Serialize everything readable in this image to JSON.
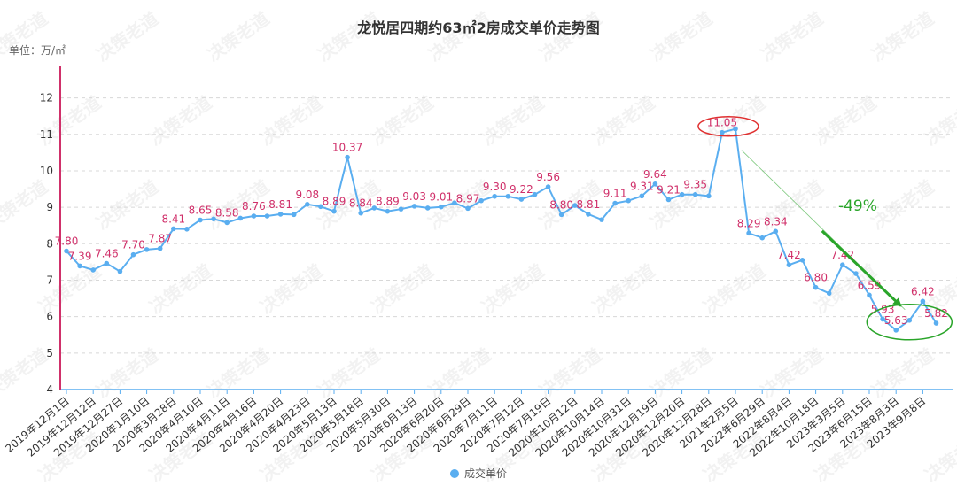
{
  "chart_data": {
    "type": "line",
    "title": "龙悦居四期约63㎡2房成交单价走势图",
    "unit_label": "单位：万/㎡",
    "ylim": [
      4,
      12.5
    ],
    "yticks": [
      4,
      5,
      6,
      7,
      8,
      9,
      10,
      11,
      12
    ],
    "grid": true,
    "legend_position": "bottom-center",
    "watermark": "决策老道",
    "series": [
      {
        "name": "成交单价",
        "color": "#5aaef0",
        "values": [
          7.8,
          7.39,
          7.28,
          7.46,
          7.24,
          7.7,
          7.84,
          7.87,
          8.41,
          8.4,
          8.65,
          8.68,
          8.58,
          8.7,
          8.76,
          8.76,
          8.81,
          8.8,
          9.08,
          9.02,
          8.89,
          10.37,
          8.84,
          8.98,
          8.89,
          8.95,
          9.03,
          8.98,
          9.01,
          9.12,
          8.97,
          9.18,
          9.3,
          9.3,
          9.22,
          9.35,
          9.56,
          8.8,
          9.05,
          8.81,
          8.66,
          9.11,
          9.18,
          9.31,
          9.64,
          9.21,
          9.35,
          9.35,
          9.31,
          11.05,
          11.15,
          8.29,
          8.16,
          8.34,
          7.42,
          7.55,
          6.8,
          6.64,
          7.42,
          7.18,
          6.59,
          5.93,
          5.63,
          5.9,
          6.42,
          5.82
        ]
      }
    ],
    "data_labels": [
      {
        "i": 0,
        "text": "7.80"
      },
      {
        "i": 1,
        "text": "7.39"
      },
      {
        "i": 3,
        "text": "7.46"
      },
      {
        "i": 5,
        "text": "7.70"
      },
      {
        "i": 7,
        "text": "7.87"
      },
      {
        "i": 8,
        "text": "8.41"
      },
      {
        "i": 10,
        "text": "8.65"
      },
      {
        "i": 12,
        "text": "8.58"
      },
      {
        "i": 14,
        "text": "8.76"
      },
      {
        "i": 16,
        "text": "8.81"
      },
      {
        "i": 18,
        "text": "9.08"
      },
      {
        "i": 20,
        "text": "8.89"
      },
      {
        "i": 21,
        "text": "10.37"
      },
      {
        "i": 22,
        "text": "8.84"
      },
      {
        "i": 24,
        "text": "8.89"
      },
      {
        "i": 26,
        "text": "9.03"
      },
      {
        "i": 28,
        "text": "9.01"
      },
      {
        "i": 30,
        "text": "8.97"
      },
      {
        "i": 32,
        "text": "9.30"
      },
      {
        "i": 34,
        "text": "9.22"
      },
      {
        "i": 36,
        "text": "9.56"
      },
      {
        "i": 37,
        "text": "8.80"
      },
      {
        "i": 39,
        "text": "8.81"
      },
      {
        "i": 41,
        "text": "9.11"
      },
      {
        "i": 43,
        "text": "9.31"
      },
      {
        "i": 44,
        "text": "9.64"
      },
      {
        "i": 45,
        "text": "9.21"
      },
      {
        "i": 47,
        "text": "9.35"
      },
      {
        "i": 49,
        "text": "11.05"
      },
      {
        "i": 51,
        "text": "8.29"
      },
      {
        "i": 53,
        "text": "8.34"
      },
      {
        "i": 54,
        "text": "7.42"
      },
      {
        "i": 56,
        "text": "6.80"
      },
      {
        "i": 58,
        "text": "7.42"
      },
      {
        "i": 60,
        "text": "6.59"
      },
      {
        "i": 61,
        "text": "5.93"
      },
      {
        "i": 62,
        "text": "5.63"
      },
      {
        "i": 64,
        "text": "6.42"
      },
      {
        "i": 65,
        "text": "5.82"
      }
    ],
    "x_tick_labels": [
      {
        "i": 0,
        "text": "2019年12月1日"
      },
      {
        "i": 2,
        "text": "2019年12月12日"
      },
      {
        "i": 4,
        "text": "2019年12月27日"
      },
      {
        "i": 6,
        "text": "2020年1月10日"
      },
      {
        "i": 8,
        "text": "2020年3月28日"
      },
      {
        "i": 10,
        "text": "2020年4月10日"
      },
      {
        "i": 12,
        "text": "2020年4月11日"
      },
      {
        "i": 14,
        "text": "2020年4月16日"
      },
      {
        "i": 16,
        "text": "2020年4月20日"
      },
      {
        "i": 18,
        "text": "2020年4月23日"
      },
      {
        "i": 20,
        "text": "2020年5月13日"
      },
      {
        "i": 22,
        "text": "2020年5月18日"
      },
      {
        "i": 24,
        "text": "2020年5月30日"
      },
      {
        "i": 26,
        "text": "2020年6月13日"
      },
      {
        "i": 28,
        "text": "2020年6月20日"
      },
      {
        "i": 30,
        "text": "2020年6月29日"
      },
      {
        "i": 32,
        "text": "2020年7月11日"
      },
      {
        "i": 34,
        "text": "2020年7月12日"
      },
      {
        "i": 36,
        "text": "2020年7月19日"
      },
      {
        "i": 38,
        "text": "2020年10月12日"
      },
      {
        "i": 40,
        "text": "2020年10月14日"
      },
      {
        "i": 42,
        "text": "2020年10月31日"
      },
      {
        "i": 44,
        "text": "2020年12月19日"
      },
      {
        "i": 46,
        "text": "2020年12月20日"
      },
      {
        "i": 48,
        "text": "2020年12月28日"
      },
      {
        "i": 50,
        "text": "2021年2月5日"
      },
      {
        "i": 52,
        "text": "2022年6月29日"
      },
      {
        "i": 54,
        "text": "2022年8月4日"
      },
      {
        "i": 56,
        "text": "2022年10月18日"
      },
      {
        "i": 58,
        "text": "2023年3月5日"
      },
      {
        "i": 60,
        "text": "2023年6月15日"
      },
      {
        "i": 62,
        "text": "2023年8月3日"
      },
      {
        "i": 64,
        "text": "2023年9月8日"
      }
    ],
    "annotations": {
      "change_text": "-49%",
      "change_color": "#2aa52a",
      "peak_circle_color": "#e03030",
      "trough_circle_color": "#2aa52a",
      "axis_color": "#d0306a"
    }
  }
}
